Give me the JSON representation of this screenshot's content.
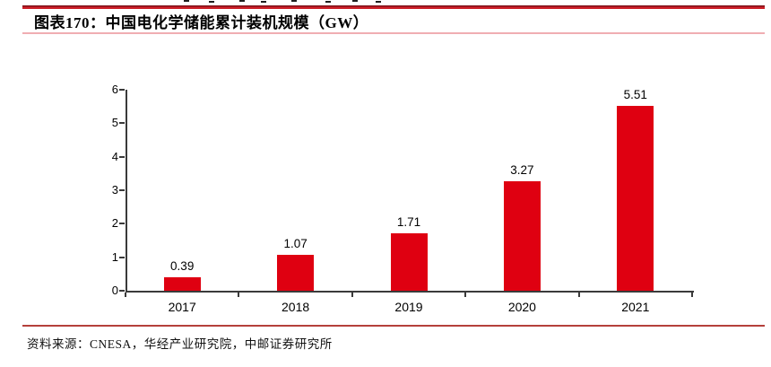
{
  "header": {
    "title": "图表170：中国电化学储能累计装机规模（GW）"
  },
  "footer": {
    "source": "资料来源：CNESA，华经产业研究院，中邮证券研究所"
  },
  "colors": {
    "bar": "#df0011",
    "top_rule_dark": "#7f1118",
    "top_rule_bright": "#cd1f28",
    "title_underline": "#f0aeb2",
    "source_divider": "#b5403b",
    "axis": "#3a3a3a"
  },
  "chart_data": {
    "type": "bar",
    "categories": [
      "2017",
      "2018",
      "2019",
      "2020",
      "2021"
    ],
    "values": [
      0.39,
      1.07,
      1.71,
      3.27,
      5.51
    ],
    "data_labels": [
      "0.39",
      "1.07",
      "1.71",
      "3.27",
      "5.51"
    ],
    "title": "中国电化学储能累计装机规模（GW）",
    "xlabel": "",
    "ylabel": "",
    "ylim": [
      0,
      6
    ],
    "yticks": [
      0,
      1,
      2,
      3,
      4,
      5,
      6
    ],
    "bar_color": "#df0011",
    "grid": false,
    "legend": false
  }
}
